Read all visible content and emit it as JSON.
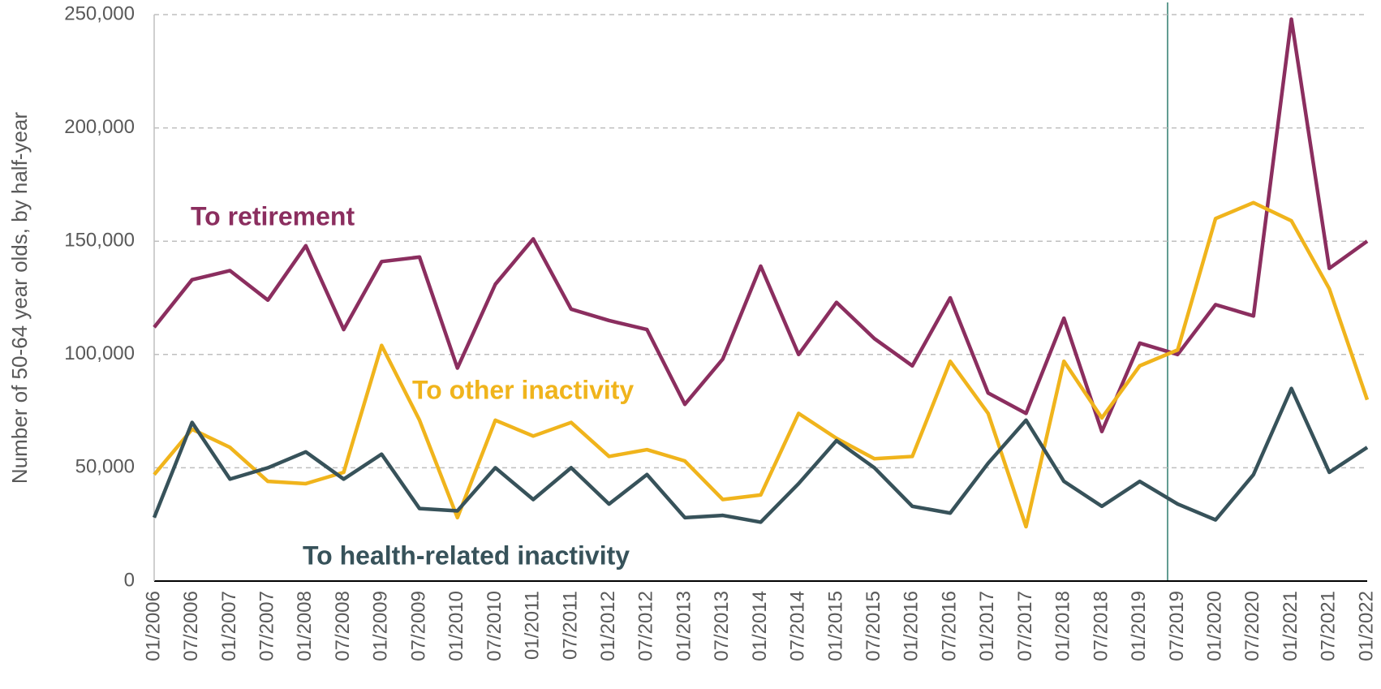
{
  "chart_data": {
    "type": "line",
    "y_label": "Number of 50-64 year olds, by half-year",
    "categories": [
      "01/2006",
      "07/2006",
      "01/2007",
      "07/2007",
      "01/2008",
      "07/2008",
      "01/2009",
      "07/2009",
      "01/2010",
      "07/2010",
      "01/2011",
      "07/2011",
      "01/2012",
      "07/2012",
      "01/2013",
      "07/2013",
      "01/2014",
      "07/2014",
      "01/2015",
      "07/2015",
      "01/2016",
      "07/2016",
      "01/2017",
      "07/2017",
      "01/2018",
      "07/2018",
      "01/2019",
      "07/2019",
      "01/2020",
      "07/2020",
      "01/2021",
      "07/2021",
      "01/2022"
    ],
    "series": [
      {
        "name": "To retirement",
        "color": "#8b2e5f",
        "values": [
          112000,
          133000,
          137000,
          124000,
          148000,
          111000,
          141000,
          143000,
          94000,
          131000,
          151000,
          120000,
          115000,
          111000,
          78000,
          98000,
          139000,
          100000,
          123000,
          107000,
          95000,
          125000,
          83000,
          74000,
          116000,
          66000,
          105000,
          100000,
          122000,
          117000,
          248000,
          138000,
          150000
        ]
      },
      {
        "name": "To other inactivity",
        "color": "#f0b41c",
        "values": [
          47000,
          67000,
          59000,
          44000,
          43000,
          48000,
          104000,
          71000,
          28000,
          71000,
          64000,
          70000,
          55000,
          58000,
          53000,
          36000,
          38000,
          74000,
          63000,
          54000,
          55000,
          97000,
          74000,
          24000,
          97000,
          72000,
          95000,
          102000,
          160000,
          167000,
          159000,
          129000,
          80000
        ]
      },
      {
        "name": "To health-related inactivity",
        "color": "#37525a",
        "values": [
          28000,
          70000,
          45000,
          50000,
          57000,
          45000,
          56000,
          32000,
          31000,
          50000,
          36000,
          50000,
          34000,
          47000,
          28000,
          29000,
          26000,
          43000,
          62000,
          50000,
          33000,
          30000,
          52000,
          71000,
          44000,
          33000,
          44000,
          34000,
          27000,
          47000,
          85000,
          48000,
          59000
        ]
      }
    ],
    "ylim": [
      0,
      250000
    ],
    "yticks": [
      0,
      {
        "value": 50000,
        "label": "50,000"
      },
      {
        "value": 100000,
        "label": "100,000"
      },
      {
        "value": 150000,
        "label": "150,000"
      },
      {
        "value": 200000,
        "label": "200,000"
      },
      {
        "value": 250000,
        "label": "250,000"
      }
    ],
    "grid": true
  }
}
